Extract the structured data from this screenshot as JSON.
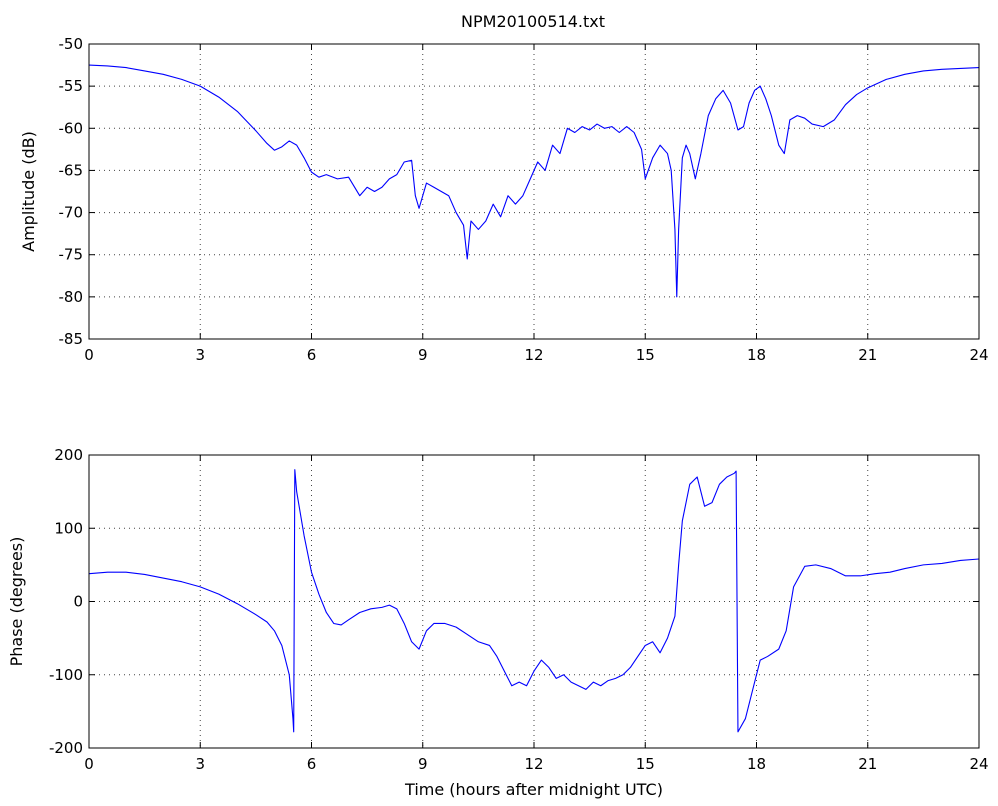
{
  "figure": {
    "title": "NPM20100514.txt",
    "line_color": "#0000ff"
  },
  "chart_data": [
    {
      "type": "line",
      "title": "NPM20100514.txt",
      "xlabel": "",
      "ylabel": "Amplitude (dB)",
      "xlim": [
        0,
        24
      ],
      "ylim": [
        -85,
        -50
      ],
      "xticks": [
        0,
        3,
        6,
        9,
        12,
        15,
        18,
        21,
        24
      ],
      "yticks": [
        -85,
        -80,
        -75,
        -70,
        -65,
        -60,
        -55,
        -50
      ],
      "grid": true,
      "series": [
        {
          "x": [
            0,
            0.5,
            1,
            1.5,
            2,
            2.5,
            3,
            3.5,
            4,
            4.5,
            4.8,
            5.0,
            5.2,
            5.4,
            5.6,
            5.8,
            6.0,
            6.2,
            6.4,
            6.7,
            7.0,
            7.3,
            7.5,
            7.7,
            7.9,
            8.1,
            8.3,
            8.5,
            8.7,
            8.8,
            8.9,
            9.1,
            9.3,
            9.5,
            9.7,
            9.9,
            10.1,
            10.2,
            10.3,
            10.5,
            10.7,
            10.9,
            11.1,
            11.3,
            11.5,
            11.7,
            11.9,
            12.1,
            12.3,
            12.5,
            12.7,
            12.9,
            13.1,
            13.3,
            13.5,
            13.7,
            13.9,
            14.1,
            14.3,
            14.5,
            14.7,
            14.9,
            15.0,
            15.2,
            15.4,
            15.6,
            15.7,
            15.8,
            15.85,
            15.9,
            16.0,
            16.1,
            16.2,
            16.35,
            16.5,
            16.7,
            16.9,
            17.1,
            17.3,
            17.5,
            17.65,
            17.8,
            17.95,
            18.1,
            18.25,
            18.4,
            18.6,
            18.75,
            18.9,
            19.1,
            19.3,
            19.5,
            19.8,
            20.1,
            20.4,
            20.7,
            21.0,
            21.5,
            22.0,
            22.5,
            23.0,
            23.5,
            24.0
          ],
          "values": [
            -52.5,
            -52.6,
            -52.8,
            -53.2,
            -53.6,
            -54.2,
            -55.0,
            -56.3,
            -58.0,
            -60.3,
            -61.8,
            -62.6,
            -62.2,
            -61.5,
            -62.0,
            -63.5,
            -65.2,
            -65.8,
            -65.5,
            -66.0,
            -65.8,
            -68.0,
            -67.0,
            -67.5,
            -67.0,
            -66.0,
            -65.5,
            -64.0,
            -63.8,
            -68.0,
            -69.5,
            -66.5,
            -67.0,
            -67.5,
            -68.0,
            -70.0,
            -71.5,
            -75.5,
            -71.0,
            -72.0,
            -71.0,
            -69.0,
            -70.5,
            -68.0,
            -69.0,
            -68.0,
            -66.0,
            -64.0,
            -65.0,
            -62.0,
            -63.0,
            -60.0,
            -60.5,
            -59.8,
            -60.2,
            -59.5,
            -60.0,
            -59.8,
            -60.5,
            -59.8,
            -60.5,
            -62.5,
            -66.0,
            -63.5,
            -62.0,
            -63.0,
            -65.0,
            -72.0,
            -80.0,
            -72.0,
            -63.5,
            -62.0,
            -63.0,
            -66.0,
            -63.0,
            -58.5,
            -56.5,
            -55.5,
            -57.0,
            -60.2,
            -59.8,
            -57.0,
            -55.5,
            -55.0,
            -56.5,
            -58.5,
            -62.0,
            -63.0,
            -59.0,
            -58.5,
            -58.8,
            -59.5,
            -59.8,
            -59.0,
            -57.2,
            -56.0,
            -55.2,
            -54.2,
            -53.6,
            -53.2,
            -53.0,
            -52.9,
            -52.8
          ]
        }
      ]
    },
    {
      "type": "line",
      "title": "",
      "xlabel": "Time (hours after midnight UTC)",
      "ylabel": "Phase (degrees)",
      "xlim": [
        0,
        24
      ],
      "ylim": [
        -200,
        200
      ],
      "xticks": [
        0,
        3,
        6,
        9,
        12,
        15,
        18,
        21,
        24
      ],
      "yticks": [
        -200,
        -100,
        0,
        100,
        200
      ],
      "grid": true,
      "series": [
        {
          "x": [
            0,
            0.5,
            1,
            1.5,
            2,
            2.5,
            3,
            3.5,
            4,
            4.5,
            4.8,
            5.0,
            5.2,
            5.4,
            5.5,
            5.52,
            5.55,
            5.6,
            5.8,
            6.0,
            6.2,
            6.4,
            6.6,
            6.8,
            7.0,
            7.3,
            7.6,
            7.9,
            8.1,
            8.3,
            8.5,
            8.7,
            8.9,
            9.1,
            9.3,
            9.6,
            9.9,
            10.2,
            10.5,
            10.8,
            11.0,
            11.2,
            11.4,
            11.6,
            11.8,
            12.0,
            12.2,
            12.4,
            12.6,
            12.8,
            13.0,
            13.2,
            13.4,
            13.6,
            13.8,
            14.0,
            14.2,
            14.4,
            14.6,
            14.8,
            15.0,
            15.2,
            15.4,
            15.6,
            15.8,
            15.9,
            16.0,
            16.2,
            16.4,
            16.6,
            16.8,
            17.0,
            17.2,
            17.4,
            17.45,
            17.5,
            17.7,
            17.9,
            18.1,
            18.3,
            18.6,
            18.8,
            19.0,
            19.3,
            19.6,
            20.0,
            20.4,
            20.8,
            21.2,
            21.6,
            22.0,
            22.5,
            23.0,
            23.5,
            24.0
          ],
          "values": [
            38,
            40,
            40,
            37,
            32,
            27,
            20,
            10,
            -3,
            -18,
            -28,
            -40,
            -60,
            -100,
            -160,
            -178,
            180,
            150,
            90,
            40,
            10,
            -15,
            -30,
            -32,
            -25,
            -15,
            -10,
            -8,
            -5,
            -10,
            -30,
            -55,
            -65,
            -40,
            -30,
            -30,
            -35,
            -45,
            -55,
            -60,
            -75,
            -95,
            -115,
            -110,
            -115,
            -95,
            -80,
            -90,
            -105,
            -100,
            -110,
            -115,
            -120,
            -110,
            -115,
            -108,
            -105,
            -100,
            -90,
            -75,
            -60,
            -55,
            -70,
            -50,
            -20,
            50,
            110,
            160,
            170,
            130,
            135,
            160,
            170,
            175,
            178,
            -178,
            -160,
            -120,
            -80,
            -75,
            -65,
            -40,
            20,
            48,
            50,
            45,
            35,
            35,
            38,
            40,
            45,
            50,
            52,
            56,
            58
          ]
        }
      ]
    }
  ]
}
